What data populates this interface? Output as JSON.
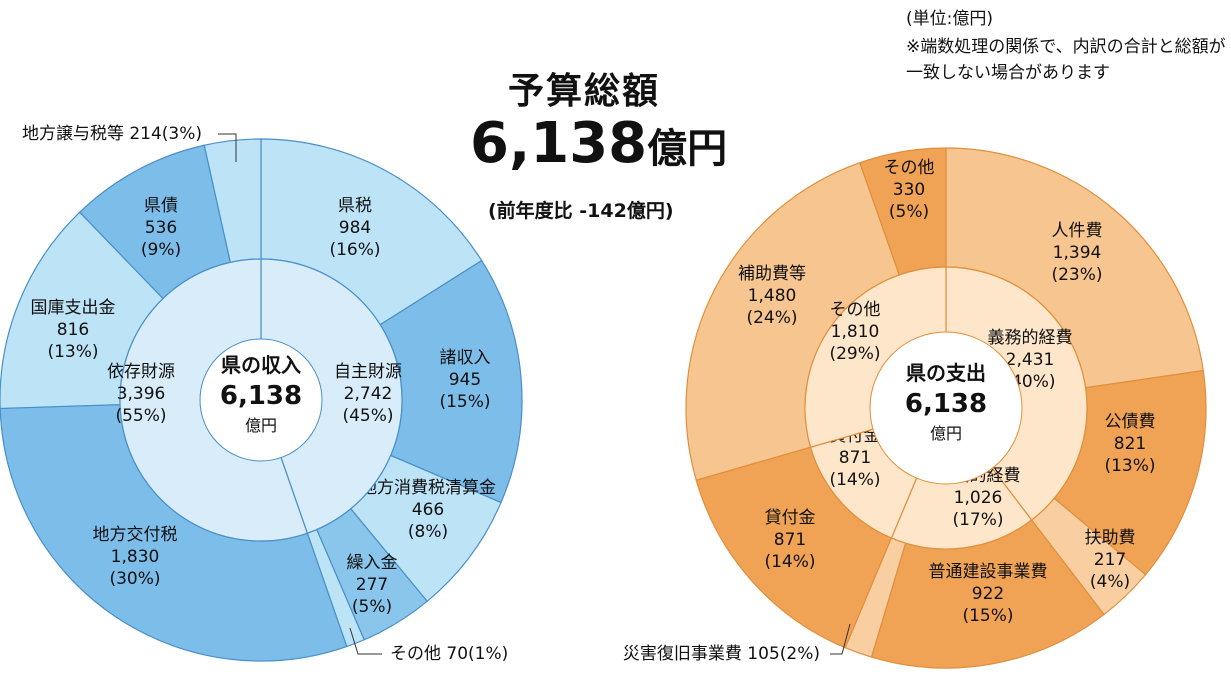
{
  "headline": {
    "title": "予算総額",
    "amount": "6,138",
    "amount_unit": "億円",
    "comparison": "(前年度比 -142億円)"
  },
  "notes": {
    "unit": "(単位:億円)",
    "rounding": "※端数処理の関係で、内訳の合計と総額が一致しない場合があります"
  },
  "chart_data": [
    {
      "type": "pie",
      "center_label": [
        "県の収入",
        "6,138",
        "億円"
      ],
      "inner_ring": [
        {
          "label": "自主財源",
          "value": 2742,
          "value_text": "2,742",
          "pct": "(45%)",
          "color": "#d8edf9"
        },
        {
          "label": "依存財源",
          "value": 3396,
          "value_text": "3,396",
          "pct": "(55%)",
          "color": "#d8edf9"
        }
      ],
      "outer_ring": [
        {
          "label": "県税",
          "value": 984,
          "value_text": "984",
          "pct": "(16%)",
          "color": "#bde3f7"
        },
        {
          "label": "諸収入",
          "value": 945,
          "value_text": "945",
          "pct": "(15%)",
          "color": "#7cbde9"
        },
        {
          "label": "地方消費税清算金",
          "value": 466,
          "value_text": "466",
          "pct": "(8%)",
          "color": "#bde3f7"
        },
        {
          "label": "繰入金",
          "value": 277,
          "value_text": "277",
          "pct": "(5%)",
          "color": "#8ac6ec"
        },
        {
          "label": "その他",
          "value": 70,
          "value_text": "70",
          "pct": "(1%)",
          "color": "#bde3f7",
          "callout": "その他 70(1%)"
        },
        {
          "label": "地方交付税",
          "value": 1830,
          "value_text": "1,830",
          "pct": "(30%)",
          "color": "#7cbde9"
        },
        {
          "label": "国庫支出金",
          "value": 816,
          "value_text": "816",
          "pct": "(13%)",
          "color": "#bde3f7"
        },
        {
          "label": "県債",
          "value": 536,
          "value_text": "536",
          "pct": "(9%)",
          "color": "#7cbde9"
        },
        {
          "label": "地方譲与税等",
          "value": 214,
          "value_text": "214",
          "pct": "(3%)",
          "color": "#bde3f7",
          "callout": "地方譲与税等 214(3%)"
        }
      ]
    },
    {
      "type": "pie",
      "center_label": [
        "県の支出",
        "6,138",
        "億円"
      ],
      "inner_ring": [
        {
          "label": "義務的経費",
          "value": 2431,
          "value_text": "2,431",
          "pct": "(40%)",
          "color": "#fde6c9"
        },
        {
          "label": "投資的経費",
          "value": 1026,
          "value_text": "1,026",
          "pct": "(17%)",
          "color": "#fde6c9"
        },
        {
          "label": "貸付金",
          "value": 871,
          "value_text": "871",
          "pct": "(14%)",
          "color": "#fde6c9"
        },
        {
          "label": "その他",
          "value": 1810,
          "value_text": "1,810",
          "pct": "(29%)",
          "color": "#fde6c9"
        }
      ],
      "outer_ring": [
        {
          "label": "人件費",
          "value": 1394,
          "value_text": "1,394",
          "pct": "(23%)",
          "color": "#f7c58f"
        },
        {
          "label": "公債費",
          "value": 821,
          "value_text": "821",
          "pct": "(13%)",
          "color": "#f0a355"
        },
        {
          "label": "扶助費",
          "value": 217,
          "value_text": "217",
          "pct": "(4%)",
          "color": "#f9cfa2"
        },
        {
          "label": "普通建設事業費",
          "value": 922,
          "value_text": "922",
          "pct": "(15%)",
          "color": "#f0a355"
        },
        {
          "label": "災害復旧事業費",
          "value": 105,
          "value_text": "105",
          "pct": "(2%)",
          "color": "#f9cfa2",
          "callout": "災害復旧事業費 105(2%)"
        },
        {
          "label": "貸付金",
          "value": 871,
          "value_text": "871",
          "pct": "(14%)",
          "color": "#f0a355"
        },
        {
          "label": "補助費等",
          "value": 1480,
          "value_text": "1,480",
          "pct": "(24%)",
          "color": "#f7c58f"
        },
        {
          "label": "その他",
          "value": 330,
          "value_text": "330",
          "pct": "(5%)",
          "color": "#f0a355"
        }
      ]
    }
  ]
}
